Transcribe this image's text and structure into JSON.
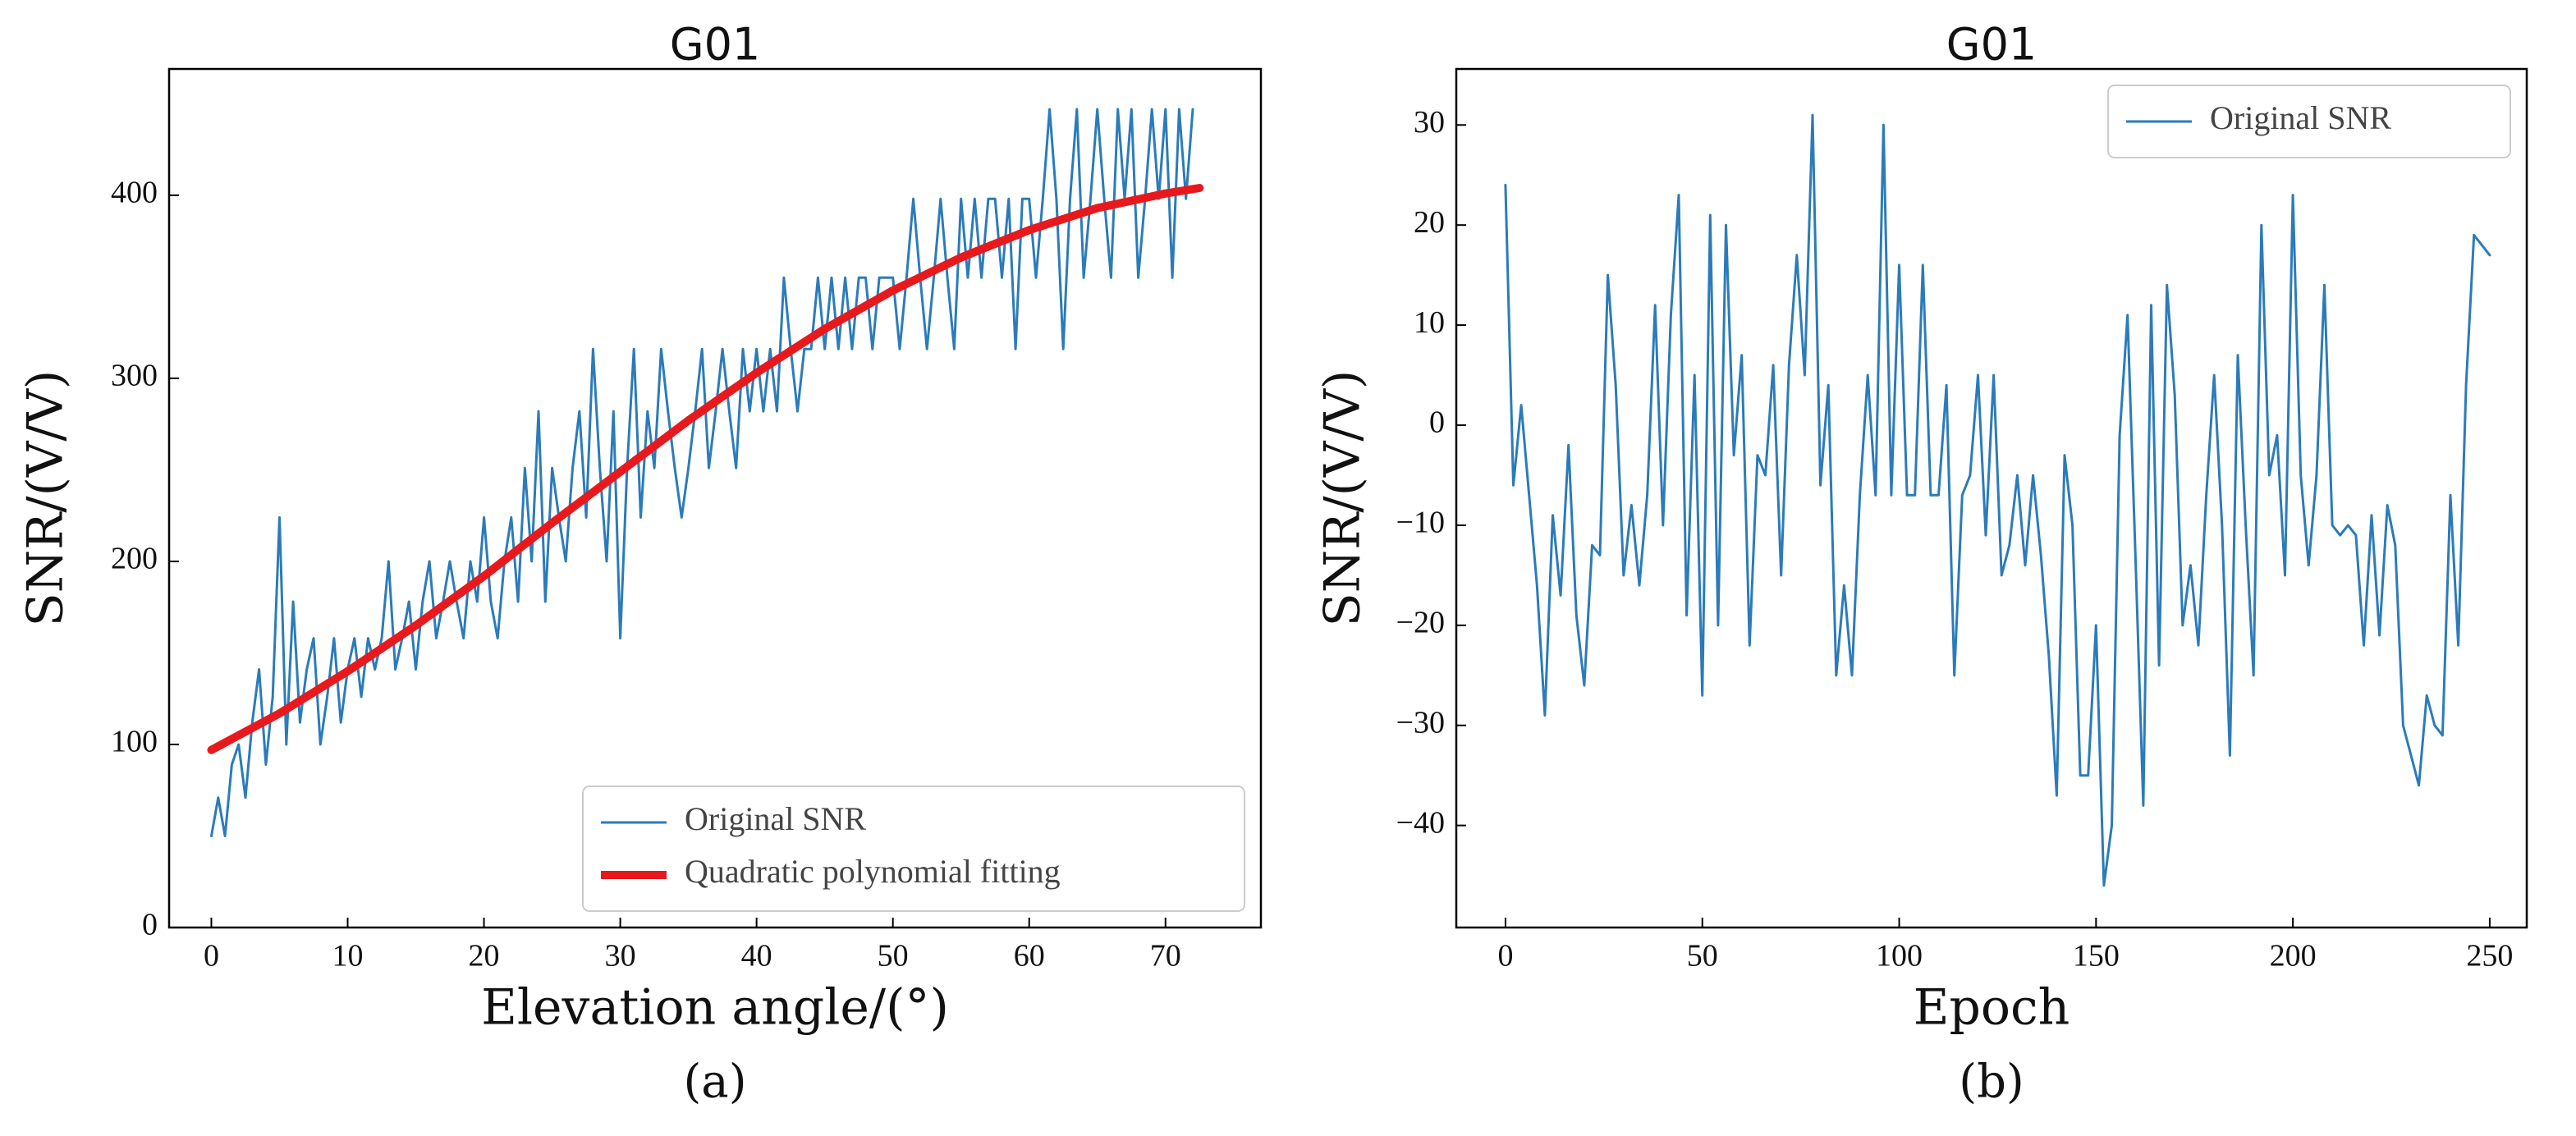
{
  "chart_data": [
    {
      "type": "line",
      "title": "G01",
      "xlabel": "Elevation angle/(°)",
      "ylabel": "SNR/(V/V)",
      "caption": "(a)",
      "xlim": [
        -3.1,
        77
      ],
      "ylim": [
        0,
        469
      ],
      "xticks": [
        0,
        10,
        20,
        30,
        40,
        50,
        60,
        70
      ],
      "yticks": [
        0,
        100,
        200,
        300,
        400
      ],
      "legend": "lower right",
      "series": [
        {
          "name": "Original SNR",
          "color": "#2b7bba",
          "x": [
            0,
            0.5,
            1,
            1.5,
            2,
            2.5,
            3,
            3.5,
            4,
            4.5,
            5,
            5.5,
            6,
            6.5,
            7,
            7.5,
            8,
            8.5,
            9,
            9.5,
            10,
            10.5,
            11,
            11.5,
            12,
            12.5,
            13,
            13.5,
            14,
            14.5,
            15,
            15.5,
            16,
            16.5,
            17,
            17.5,
            18,
            18.5,
            19,
            19.5,
            20,
            20.5,
            21,
            21.5,
            22,
            22.5,
            23,
            23.5,
            24,
            24.5,
            25,
            25.5,
            26,
            26.5,
            27,
            27.5,
            28,
            28.5,
            29,
            29.5,
            30,
            30.5,
            31,
            31.5,
            32,
            32.5,
            33,
            33.5,
            34,
            34.5,
            35,
            35.5,
            36,
            36.5,
            37,
            37.5,
            38,
            38.5,
            39,
            39.5,
            40,
            40.5,
            41,
            41.5,
            42,
            42.5,
            43,
            43.5,
            44,
            44.5,
            45,
            45.5,
            46,
            46.5,
            47,
            47.5,
            48,
            48.5,
            49,
            49.5,
            50,
            50.5,
            51,
            51.5,
            52,
            52.5,
            53,
            53.5,
            54,
            54.5,
            55,
            55.5,
            56,
            56.5,
            57,
            57.5,
            58,
            58.5,
            59,
            59.5,
            60,
            60.5,
            61,
            61.5,
            62,
            62.5,
            63,
            63.5,
            64,
            64.5,
            65,
            65.5,
            66,
            66.5,
            67,
            67.5,
            68,
            68.5,
            69,
            69.5,
            70,
            70.5,
            71,
            71.5,
            72
          ],
          "values": [
            50,
            71,
            50,
            89,
            100,
            71,
            112,
            141,
            89,
            126,
            224,
            100,
            178,
            112,
            141,
            158,
            100,
            126,
            158,
            112,
            141,
            158,
            126,
            158,
            141,
            158,
            200,
            141,
            158,
            178,
            141,
            178,
            200,
            158,
            178,
            200,
            178,
            158,
            200,
            178,
            224,
            178,
            158,
            200,
            224,
            178,
            251,
            200,
            282,
            178,
            251,
            224,
            200,
            251,
            282,
            224,
            316,
            251,
            200,
            282,
            158,
            251,
            316,
            224,
            282,
            251,
            316,
            282,
            251,
            224,
            251,
            282,
            316,
            251,
            282,
            316,
            282,
            251,
            316,
            282,
            316,
            282,
            316,
            282,
            355,
            316,
            282,
            316,
            316,
            355,
            316,
            355,
            316,
            355,
            316,
            355,
            355,
            316,
            355,
            355,
            355,
            316,
            355,
            398,
            355,
            316,
            355,
            398,
            355,
            316,
            398,
            355,
            398,
            355,
            398,
            398,
            355,
            398,
            316,
            398,
            398,
            355,
            398,
            447,
            398,
            316,
            398,
            447,
            355,
            398,
            447,
            398,
            355,
            447,
            398,
            447,
            355,
            398,
            447,
            398,
            447,
            355,
            447,
            398,
            447
          ]
        },
        {
          "name": "Quadratic polynomial fitting",
          "color": "#e8191c",
          "x": [
            0,
            5,
            10,
            15,
            20,
            25,
            30,
            35,
            40,
            45,
            50,
            55,
            60,
            65,
            70,
            72.5
          ],
          "values": [
            97,
            117,
            140,
            165,
            192,
            221,
            249,
            277,
            303,
            327,
            348,
            366,
            381,
            393,
            401,
            404
          ]
        }
      ]
    },
    {
      "type": "line",
      "title": "G01",
      "xlabel": "Epoch",
      "ylabel": "SNR/(V/V)",
      "caption": "(b)",
      "xlim": [
        -12.5,
        259.4
      ],
      "ylim": [
        -50.2,
        35.6
      ],
      "xticks": [
        0,
        50,
        100,
        150,
        200,
        250
      ],
      "yticks": [
        30,
        20,
        10,
        0,
        {
          "value": -10,
          "label": "−10"
        },
        {
          "value": -20,
          "label": "−20"
        },
        {
          "value": -30,
          "label": "−30"
        },
        {
          "value": -40,
          "label": "−40"
        }
      ],
      "legend": "upper right",
      "series": [
        {
          "name": "Original SNR",
          "color": "#2b7bba",
          "x": [
            0,
            2,
            4,
            6,
            8,
            10,
            12,
            14,
            16,
            18,
            20,
            22,
            24,
            26,
            28,
            30,
            32,
            34,
            36,
            38,
            40,
            42,
            44,
            46,
            48,
            50,
            52,
            54,
            56,
            58,
            60,
            62,
            64,
            66,
            68,
            70,
            72,
            74,
            76,
            78,
            80,
            82,
            84,
            86,
            88,
            90,
            92,
            94,
            96,
            98,
            100,
            102,
            104,
            106,
            108,
            110,
            112,
            114,
            116,
            118,
            120,
            122,
            124,
            126,
            128,
            130,
            132,
            134,
            136,
            138,
            140,
            142,
            144,
            146,
            148,
            150,
            152,
            154,
            156,
            158,
            160,
            162,
            164,
            166,
            168,
            170,
            172,
            174,
            176,
            178,
            180,
            182,
            184,
            186,
            188,
            190,
            192,
            194,
            196,
            198,
            200,
            202,
            204,
            206,
            208,
            210,
            212,
            214,
            216,
            218,
            220,
            222,
            224,
            226,
            228,
            230,
            232,
            234,
            236,
            238,
            240,
            242,
            244,
            246,
            248,
            250
          ],
          "values": [
            24,
            -6,
            2,
            -7,
            -16,
            -29,
            -9,
            -17,
            -2,
            -19,
            -26,
            -12,
            -13,
            15,
            4,
            -15,
            -8,
            -16,
            -7,
            12,
            -10,
            11,
            23,
            -19,
            5,
            -27,
            21,
            -20,
            20,
            -3,
            7,
            -22,
            -3,
            -5,
            6,
            -15,
            6,
            17,
            5,
            31,
            -6,
            4,
            -25,
            -16,
            -25,
            -7,
            5,
            -7,
            30,
            -7,
            16,
            -7,
            -7,
            16,
            -7,
            -7,
            4,
            -25,
            -7,
            -5,
            5,
            -11,
            5,
            -15,
            -12,
            -5,
            -14,
            -5,
            -13,
            -23,
            -37,
            -3,
            -10,
            -35,
            -35,
            -20,
            -46,
            -40,
            -1,
            11,
            -13,
            -38,
            12,
            -24,
            14,
            3,
            -20,
            -14,
            -22,
            -7,
            5,
            -10,
            -33,
            7,
            -10,
            -25,
            20,
            -5,
            -1,
            -15,
            23,
            -5,
            -14,
            -5,
            14,
            -10,
            -11,
            -10,
            -11,
            -22,
            -9,
            -21,
            -8,
            -12,
            -30,
            -33,
            -36,
            -27,
            -30,
            -31,
            -7,
            -22,
            4,
            19,
            18,
            17
          ]
        }
      ]
    }
  ]
}
